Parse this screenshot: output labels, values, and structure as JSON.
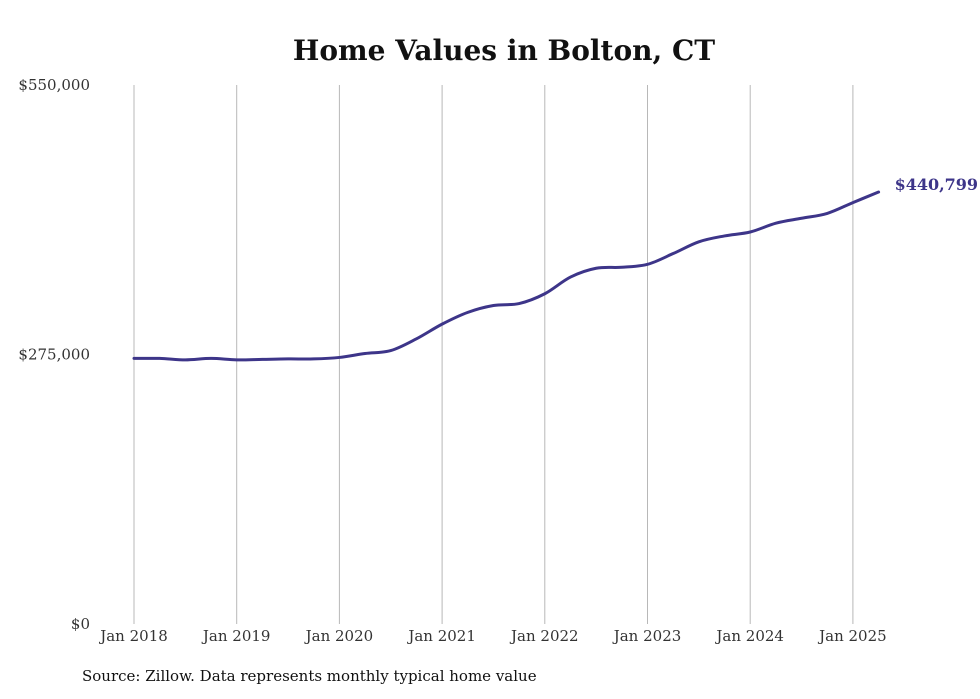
{
  "chart_data": {
    "type": "line",
    "title": "Home Values in Bolton, CT",
    "xlabel": "",
    "ylabel": "",
    "ylim": [
      0,
      550000
    ],
    "y_ticks": [
      {
        "value": 0,
        "label": "$0"
      },
      {
        "value": 275000,
        "label": "$275,000"
      },
      {
        "value": 550000,
        "label": "$550,000"
      }
    ],
    "x_ticks": [
      {
        "value": 2018.0,
        "label": "Jan 2018"
      },
      {
        "value": 2019.0,
        "label": "Jan 2019"
      },
      {
        "value": 2020.0,
        "label": "Jan 2020"
      },
      {
        "value": 2021.0,
        "label": "Jan 2021"
      },
      {
        "value": 2022.0,
        "label": "Jan 2022"
      },
      {
        "value": 2023.0,
        "label": "Jan 2023"
      },
      {
        "value": 2024.0,
        "label": "Jan 2024"
      },
      {
        "value": 2025.0,
        "label": "Jan 2025"
      }
    ],
    "grid": {
      "vertical": true,
      "horizontal": false
    },
    "line_color": "#3d3589",
    "series": [
      {
        "name": "",
        "x": [
          2018.0,
          2018.25,
          2018.5,
          2018.75,
          2019.0,
          2019.25,
          2019.5,
          2019.75,
          2020.0,
          2020.25,
          2020.5,
          2020.75,
          2021.0,
          2021.25,
          2021.5,
          2021.75,
          2022.0,
          2022.25,
          2022.5,
          2022.75,
          2023.0,
          2023.25,
          2023.5,
          2023.75,
          2024.0,
          2024.25,
          2024.5,
          2024.75,
          2025.0,
          2025.25
        ],
        "values": [
          271000,
          271000,
          269500,
          271000,
          269500,
          270000,
          270500,
          270500,
          272000,
          276000,
          279000,
          291000,
          306000,
          318000,
          325000,
          327000,
          337000,
          354000,
          363000,
          364000,
          367000,
          378000,
          390000,
          396000,
          400000,
          409000,
          414000,
          419000,
          430000,
          440799
        ]
      }
    ],
    "end_label": "$440,799",
    "source": "Source: Zillow. Data represents monthly typical home value"
  }
}
